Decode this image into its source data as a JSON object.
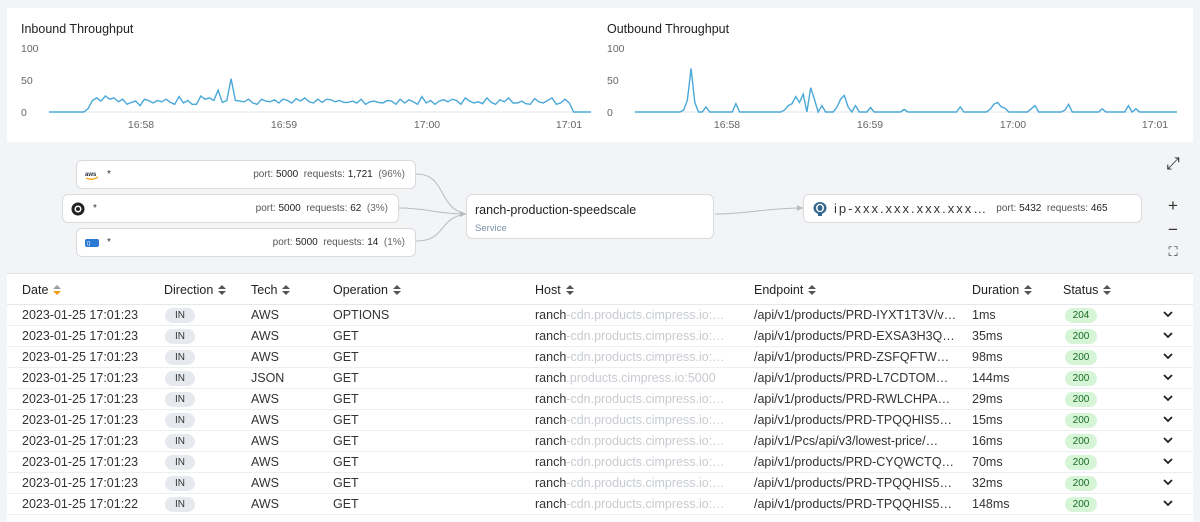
{
  "charts": [
    {
      "title": "Inbound Throughput",
      "y_ticks": [
        "100",
        "50",
        "0"
      ],
      "x_ticks": [
        "16:58",
        "16:59",
        "17:00",
        "17:01"
      ],
      "color": "#4aa8d8"
    },
    {
      "title": "Outbound Throughput",
      "y_ticks": [
        "100",
        "50",
        "0"
      ],
      "x_ticks": [
        "16:58",
        "16:59",
        "17:00",
        "17:01"
      ],
      "color": "#4aa8d8"
    }
  ],
  "chart_data": [
    {
      "type": "line",
      "title": "Inbound Throughput",
      "ylim": [
        0,
        100
      ],
      "x_tick_labels": [
        "16:58",
        "16:59",
        "17:00",
        "17:01"
      ],
      "values": [
        0,
        0,
        0,
        0,
        0,
        0,
        0,
        0,
        0,
        5,
        18,
        22,
        17,
        25,
        20,
        22,
        16,
        20,
        12,
        15,
        17,
        10,
        20,
        18,
        14,
        18,
        16,
        20,
        15,
        12,
        24,
        14,
        18,
        12,
        12,
        25,
        20,
        22,
        18,
        34,
        15,
        18,
        52,
        18,
        17,
        16,
        20,
        14,
        12,
        20,
        17,
        16,
        19,
        14,
        20,
        18,
        14,
        21,
        17,
        22,
        16,
        14,
        20,
        15,
        20,
        19,
        16,
        18,
        15,
        15,
        17,
        14,
        20,
        12,
        16,
        17,
        15,
        14,
        18,
        17,
        12,
        20,
        14,
        19,
        16,
        12,
        24,
        14,
        18,
        12,
        17,
        19,
        16,
        20,
        18,
        12,
        22,
        17,
        14,
        16,
        13,
        22,
        15,
        12,
        19,
        16,
        22,
        14,
        14,
        17,
        13,
        12,
        21,
        16,
        14,
        18,
        22,
        12,
        14,
        20,
        14,
        0,
        0,
        0,
        0,
        0
      ]
    },
    {
      "type": "line",
      "title": "Outbound Throughput",
      "ylim": [
        0,
        100
      ],
      "x_tick_labels": [
        "16:58",
        "16:59",
        "17:00",
        "17:01"
      ],
      "values": [
        0,
        0,
        0,
        0,
        0,
        0,
        0,
        0,
        0,
        0,
        0,
        0,
        0,
        3,
        18,
        68,
        15,
        0,
        0,
        8,
        0,
        0,
        0,
        0,
        0,
        0,
        0,
        13,
        0,
        0,
        0,
        0,
        0,
        0,
        0,
        0,
        0,
        0,
        0,
        0,
        3,
        10,
        13,
        24,
        15,
        28,
        0,
        38,
        20,
        0,
        10,
        0,
        0,
        0,
        7,
        20,
        26,
        8,
        0,
        10,
        0,
        0,
        0,
        7,
        0,
        0,
        0,
        0,
        0,
        0,
        0,
        0,
        4,
        0,
        0,
        0,
        0,
        0,
        0,
        0,
        0,
        0,
        0,
        0,
        0,
        0,
        0,
        8,
        0,
        0,
        0,
        0,
        0,
        0,
        0,
        4,
        12,
        15,
        8,
        6,
        0,
        0,
        0,
        0,
        0,
        0,
        5,
        10,
        0,
        0,
        0,
        0,
        0,
        0,
        0,
        3,
        12,
        0,
        0,
        0,
        0,
        0,
        0,
        0,
        0,
        5,
        0,
        0,
        0,
        0,
        0,
        0,
        10,
        0,
        5,
        0,
        0,
        0,
        0,
        0,
        0,
        0,
        0,
        0,
        0,
        0
      ]
    }
  ],
  "map": {
    "sources": [
      {
        "icon": "aws-icon",
        "label": "*",
        "port_label": "port:",
        "port": "5000",
        "req_label": "requests:",
        "requests": "1,721",
        "pct": "(96%)"
      },
      {
        "icon": "circle-logo-icon",
        "label": "*",
        "port_label": "port:",
        "port": "5000",
        "req_label": "requests:",
        "requests": "62",
        "pct": "(3%)"
      },
      {
        "icon": "json-icon",
        "label": "*",
        "port_label": "port:",
        "port": "5000",
        "req_label": "requests:",
        "requests": "14",
        "pct": "(1%)"
      }
    ],
    "service": {
      "name": "ranch-production-speedscale",
      "type": "Service"
    },
    "destination": {
      "icon": "postgres-icon",
      "host": "ip-xxx.xxx.xxx.xxx…",
      "port_label": "port:",
      "port": "5432",
      "req_label": "requests:",
      "requests": "465"
    },
    "controls": {
      "expand": "⤢",
      "zoom_in": "+",
      "zoom_out": "−",
      "fit": "⛶"
    }
  },
  "table": {
    "columns": [
      "Date",
      "Direction",
      "Tech",
      "Operation",
      "Host",
      "Endpoint",
      "Duration",
      "Status"
    ],
    "rows": [
      {
        "date": "2023-01-25 17:01:23",
        "direction": "IN",
        "tech": "AWS",
        "operation": "OPTIONS",
        "host": "ranch-cdn.products.cimpress.io:…",
        "endpoint": "/api/v1/products/PRD-IYXT1T3V/v…",
        "duration": "1ms",
        "status": "204"
      },
      {
        "date": "2023-01-25 17:01:23",
        "direction": "IN",
        "tech": "AWS",
        "operation": "GET",
        "host": "ranch-cdn.products.cimpress.io:…",
        "endpoint": "/api/v1/products/PRD-EXSA3H3Q…",
        "duration": "35ms",
        "status": "200"
      },
      {
        "date": "2023-01-25 17:01:23",
        "direction": "IN",
        "tech": "AWS",
        "operation": "GET",
        "host": "ranch-cdn.products.cimpress.io:…",
        "endpoint": "/api/v1/products/PRD-ZSFQFTW…",
        "duration": "98ms",
        "status": "200"
      },
      {
        "date": "2023-01-25 17:01:23",
        "direction": "IN",
        "tech": "JSON",
        "operation": "GET",
        "host": "ranch.products.cimpress.io:5000",
        "endpoint": "/api/v1/products/PRD-L7CDTOM…",
        "duration": "144ms",
        "status": "200"
      },
      {
        "date": "2023-01-25 17:01:23",
        "direction": "IN",
        "tech": "AWS",
        "operation": "GET",
        "host": "ranch-cdn.products.cimpress.io:…",
        "endpoint": "/api/v1/products/PRD-RWLCHPA…",
        "duration": "29ms",
        "status": "200"
      },
      {
        "date": "2023-01-25 17:01:23",
        "direction": "IN",
        "tech": "AWS",
        "operation": "GET",
        "host": "ranch-cdn.products.cimpress.io:…",
        "endpoint": "/api/v1/products/PRD-TPQQHIS5…",
        "duration": "15ms",
        "status": "200"
      },
      {
        "date": "2023-01-25 17:01:23",
        "direction": "IN",
        "tech": "AWS",
        "operation": "GET",
        "host": "ranch-cdn.products.cimpress.io:…",
        "endpoint": "/api/v1/Pcs/api/v3/lowest-price/…",
        "duration": "16ms",
        "status": "200"
      },
      {
        "date": "2023-01-25 17:01:23",
        "direction": "IN",
        "tech": "AWS",
        "operation": "GET",
        "host": "ranch-cdn.products.cimpress.io:…",
        "endpoint": "/api/v1/products/PRD-CYQWCTQ…",
        "duration": "70ms",
        "status": "200"
      },
      {
        "date": "2023-01-25 17:01:23",
        "direction": "IN",
        "tech": "AWS",
        "operation": "GET",
        "host": "ranch-cdn.products.cimpress.io:…",
        "endpoint": "/api/v1/products/PRD-TPQQHIS5…",
        "duration": "32ms",
        "status": "200"
      },
      {
        "date": "2023-01-25 17:01:22",
        "direction": "IN",
        "tech": "AWS",
        "operation": "GET",
        "host": "ranch-cdn.products.cimpress.io:…",
        "endpoint": "/api/v1/products/PRD-TPQQHIS5…",
        "duration": "148ms",
        "status": "200"
      }
    ]
  }
}
